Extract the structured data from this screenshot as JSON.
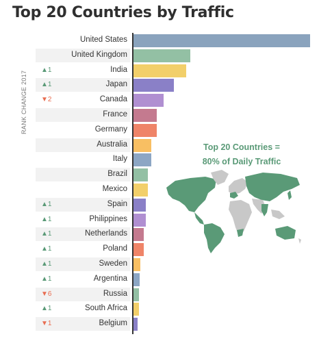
{
  "title": "Top 20 Countries by Traffic",
  "axis_label": "RANK CHANGE 2017",
  "overlay": {
    "line1": "Top 20 Countries =",
    "line2": "80% of Daily Traffic"
  },
  "chart_data": {
    "type": "bar",
    "orientation": "horizontal",
    "title": "Top 20 Countries by Traffic",
    "categories": [
      "United States",
      "United Kingdom",
      "India",
      "Japan",
      "Canada",
      "France",
      "Germany",
      "Australia",
      "Italy",
      "Brazil",
      "Mexico",
      "Spain",
      "Philippines",
      "Netherlands",
      "Poland",
      "Sweden",
      "Argentina",
      "Russia",
      "South Africa",
      "Belgium"
    ],
    "values": [
      100,
      32,
      30,
      23,
      17,
      13,
      13,
      10,
      10,
      8,
      8,
      7,
      7,
      6,
      6,
      4,
      3.5,
      3,
      3,
      2.5
    ],
    "rank_change": [
      "",
      "",
      "▲1",
      "▲1",
      "▼2",
      "",
      "",
      "",
      "",
      "",
      "",
      "▲1",
      "▲1",
      "▲1",
      "▲1",
      "▲1",
      "▲1",
      "▼6",
      "▲1",
      "▼1"
    ],
    "colors": [
      "#8aa3bd",
      "#93c0a4",
      "#f2cf6a",
      "#8a80c7",
      "#b08fd1",
      "#c47a8f",
      "#ef8468",
      "#f8bf63",
      "#8ca6c4",
      "#93c0a4",
      "#f2cf6a",
      "#8a80c7",
      "#b08fd1",
      "#c47a8f",
      "#ef8468",
      "#f8bf63",
      "#8ca6c4",
      "#93c0a4",
      "#f2cf6a",
      "#8a80c7"
    ],
    "xlim": [
      0,
      100
    ],
    "grid": false
  }
}
